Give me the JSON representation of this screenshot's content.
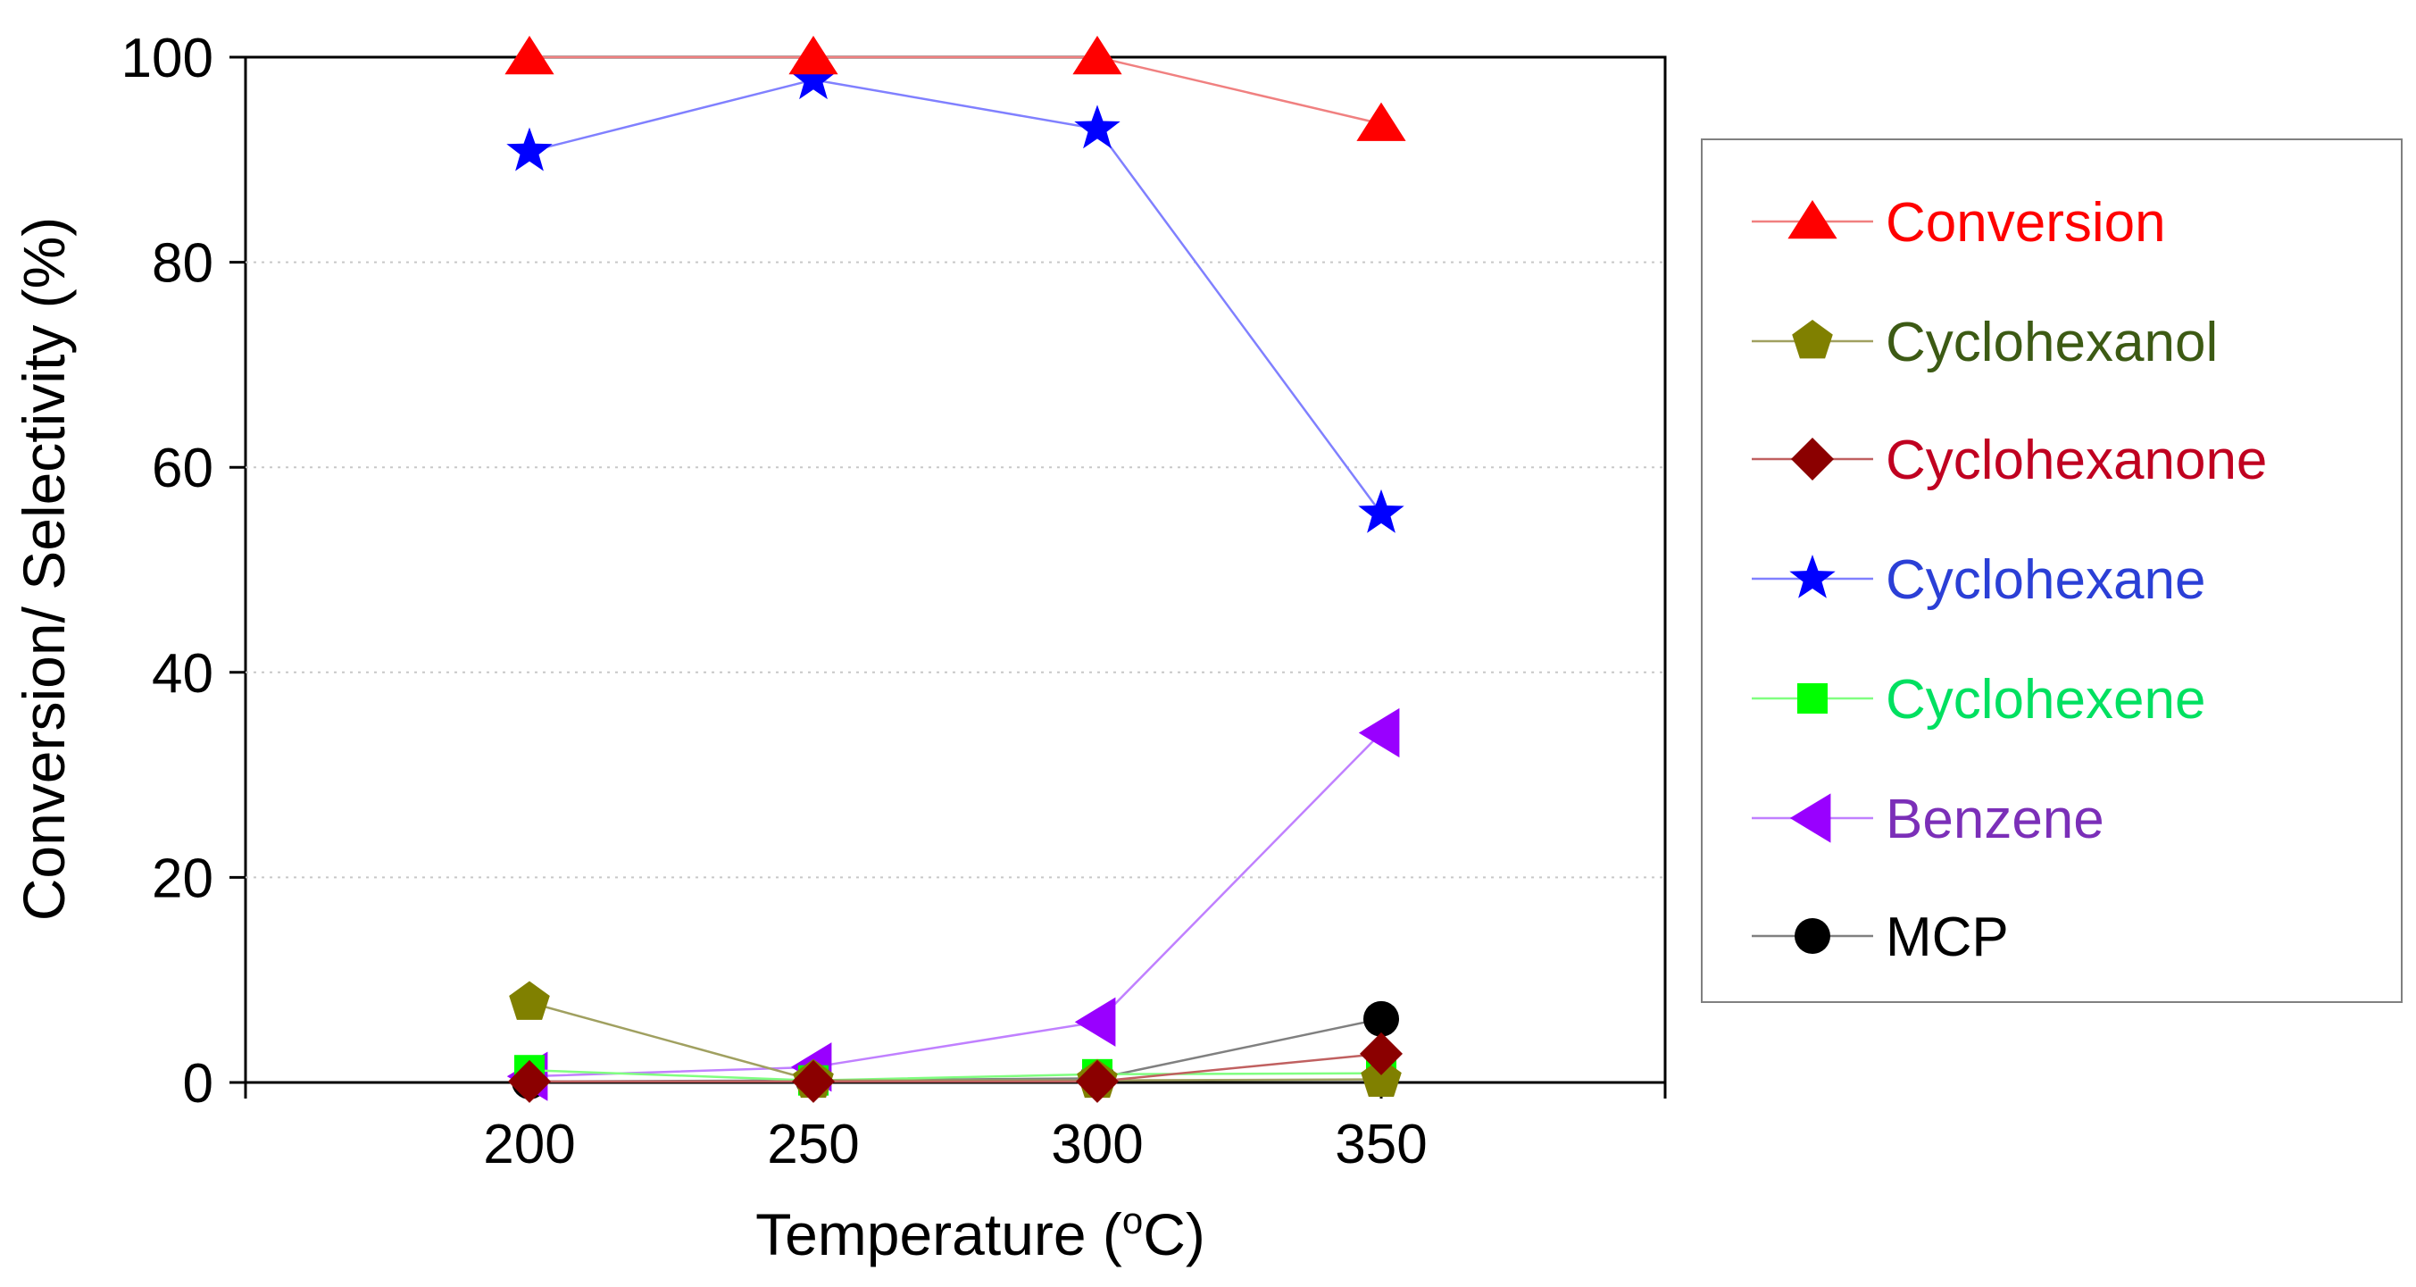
{
  "chart_data": {
    "type": "line",
    "title": "",
    "xlabel": "Temperature (",
    "xlabel_sup": "o",
    "xlabel_unit": "C)",
    "ylabel": "Conversion/ Selectivity (%)",
    "x": [
      200,
      250,
      300,
      350
    ],
    "x_tick_labels": [
      "200",
      "250",
      "300",
      "350"
    ],
    "y_tick_labels": [
      "0",
      "20",
      "40",
      "60",
      "80",
      "100"
    ],
    "y_ticks": [
      0,
      20,
      40,
      60,
      80,
      100
    ],
    "xlim": [
      150,
      400
    ],
    "ylim": [
      0,
      100
    ],
    "grid": "horizontal-dotted",
    "legend_position": "right",
    "series": [
      {
        "name": "Conversion",
        "values": [
          100,
          100,
          100,
          93.5
        ],
        "color": "#ff0000",
        "line_color": "#f08080",
        "label_color": "#ff0000",
        "marker": "triangle-up"
      },
      {
        "name": "Cyclohexanol",
        "values": [
          7.8,
          0.2,
          0.2,
          0.3
        ],
        "color": "#808000",
        "line_color": "#a0a060",
        "label_color": "#3c5a14",
        "marker": "pentagon"
      },
      {
        "name": "Cyclohexanone",
        "values": [
          0.1,
          0.1,
          0.1,
          2.8
        ],
        "color": "#8b0000",
        "line_color": "#c06060",
        "label_color": "#c00020",
        "marker": "diamond"
      },
      {
        "name": "Cyclohexane",
        "values": [
          90.8,
          97.8,
          93,
          55.5
        ],
        "color": "#0000ff",
        "line_color": "#8080ff",
        "label_color": "#2b3fd6",
        "marker": "star"
      },
      {
        "name": "Cyclohexene",
        "values": [
          1.2,
          0.2,
          0.8,
          0.9
        ],
        "color": "#00ff00",
        "line_color": "#80ff80",
        "label_color": "#00e060",
        "marker": "square"
      },
      {
        "name": "Benzene",
        "values": [
          0.6,
          1.5,
          5.9,
          34.1
        ],
        "color": "#9900ff",
        "line_color": "#c080ff",
        "label_color": "#7b2fb8",
        "marker": "triangle-left"
      },
      {
        "name": "MCP",
        "values": [
          0.1,
          0.2,
          0.4,
          6.2
        ],
        "color": "#000000",
        "line_color": "#808080",
        "label_color": "#000000",
        "marker": "circle"
      }
    ]
  }
}
